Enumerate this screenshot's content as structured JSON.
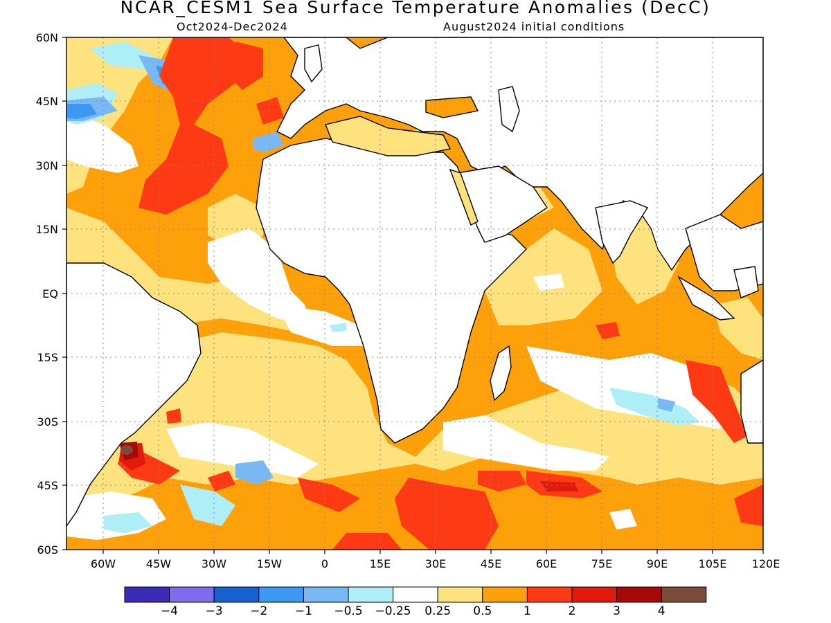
{
  "header": {
    "title": "NCAR_CESM1 Sea Surface Temperature Anomalies (DecC)",
    "period": "Oct2024-Dec2024",
    "init": "August2024 initial conditions"
  },
  "map": {
    "lon_labels": [
      "60W",
      "45W",
      "30W",
      "15W",
      "0",
      "15E",
      "30E",
      "45E",
      "60E",
      "75E",
      "90E",
      "105E",
      "120E"
    ],
    "lat_labels": [
      "60N",
      "45N",
      "30N",
      "15N",
      "EQ",
      "15S",
      "30S",
      "45S",
      "60S"
    ],
    "lon_range": [
      -70,
      120
    ],
    "lat_range": [
      -60,
      60
    ]
  },
  "colorbar": {
    "colors": [
      "#3a2cb4",
      "#7f6cec",
      "#1660d2",
      "#3c98f0",
      "#78b8f4",
      "#aeeef6",
      "#ffffff",
      "#fee27e",
      "#fea00a",
      "#fe3a14",
      "#e01a0c",
      "#a80808",
      "#7a4c3a"
    ],
    "labels": [
      "−4",
      "−3",
      "−2",
      "−1",
      "−0.5",
      "−0.25",
      "0.25",
      "0.5",
      "1",
      "2",
      "3",
      "4"
    ]
  },
  "fields": {
    "ocean_base": "#fea00a",
    "land": "#ffffff",
    "coast": "#000000"
  }
}
